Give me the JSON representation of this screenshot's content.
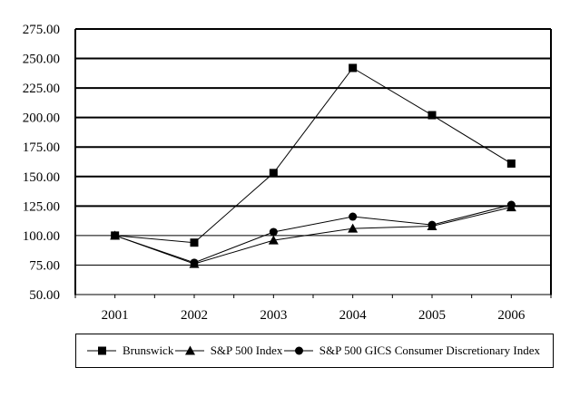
{
  "chart_data": {
    "type": "line",
    "title": "",
    "xlabel": "",
    "ylabel": "",
    "categories": [
      "2001",
      "2002",
      "2003",
      "2004",
      "2005",
      "2006"
    ],
    "series": [
      {
        "name": "Brunswick",
        "marker": "square",
        "values": [
          100,
          94,
          153,
          242,
          202,
          161
        ]
      },
      {
        "name": "S&P 500 Index",
        "marker": "triangle",
        "values": [
          100,
          76,
          96,
          106,
          108,
          124
        ]
      },
      {
        "name": "S&P 500 GICS Consumer Discretionary Index",
        "marker": "circle",
        "values": [
          100,
          77,
          103,
          116,
          109,
          126
        ]
      }
    ],
    "ylim": [
      50,
      275
    ],
    "ytick_step": 25,
    "yticks": [
      "275.00",
      "250.00",
      "225.00",
      "200.00",
      "175.00",
      "150.00",
      "125.00",
      "100.00",
      "75.00",
      "50.00"
    ],
    "grid": "horizontal",
    "legend_position": "bottom",
    "colors": {
      "line": "#000000",
      "marker": "#000000",
      "background": "#ffffff",
      "gridline": "#000000"
    }
  }
}
